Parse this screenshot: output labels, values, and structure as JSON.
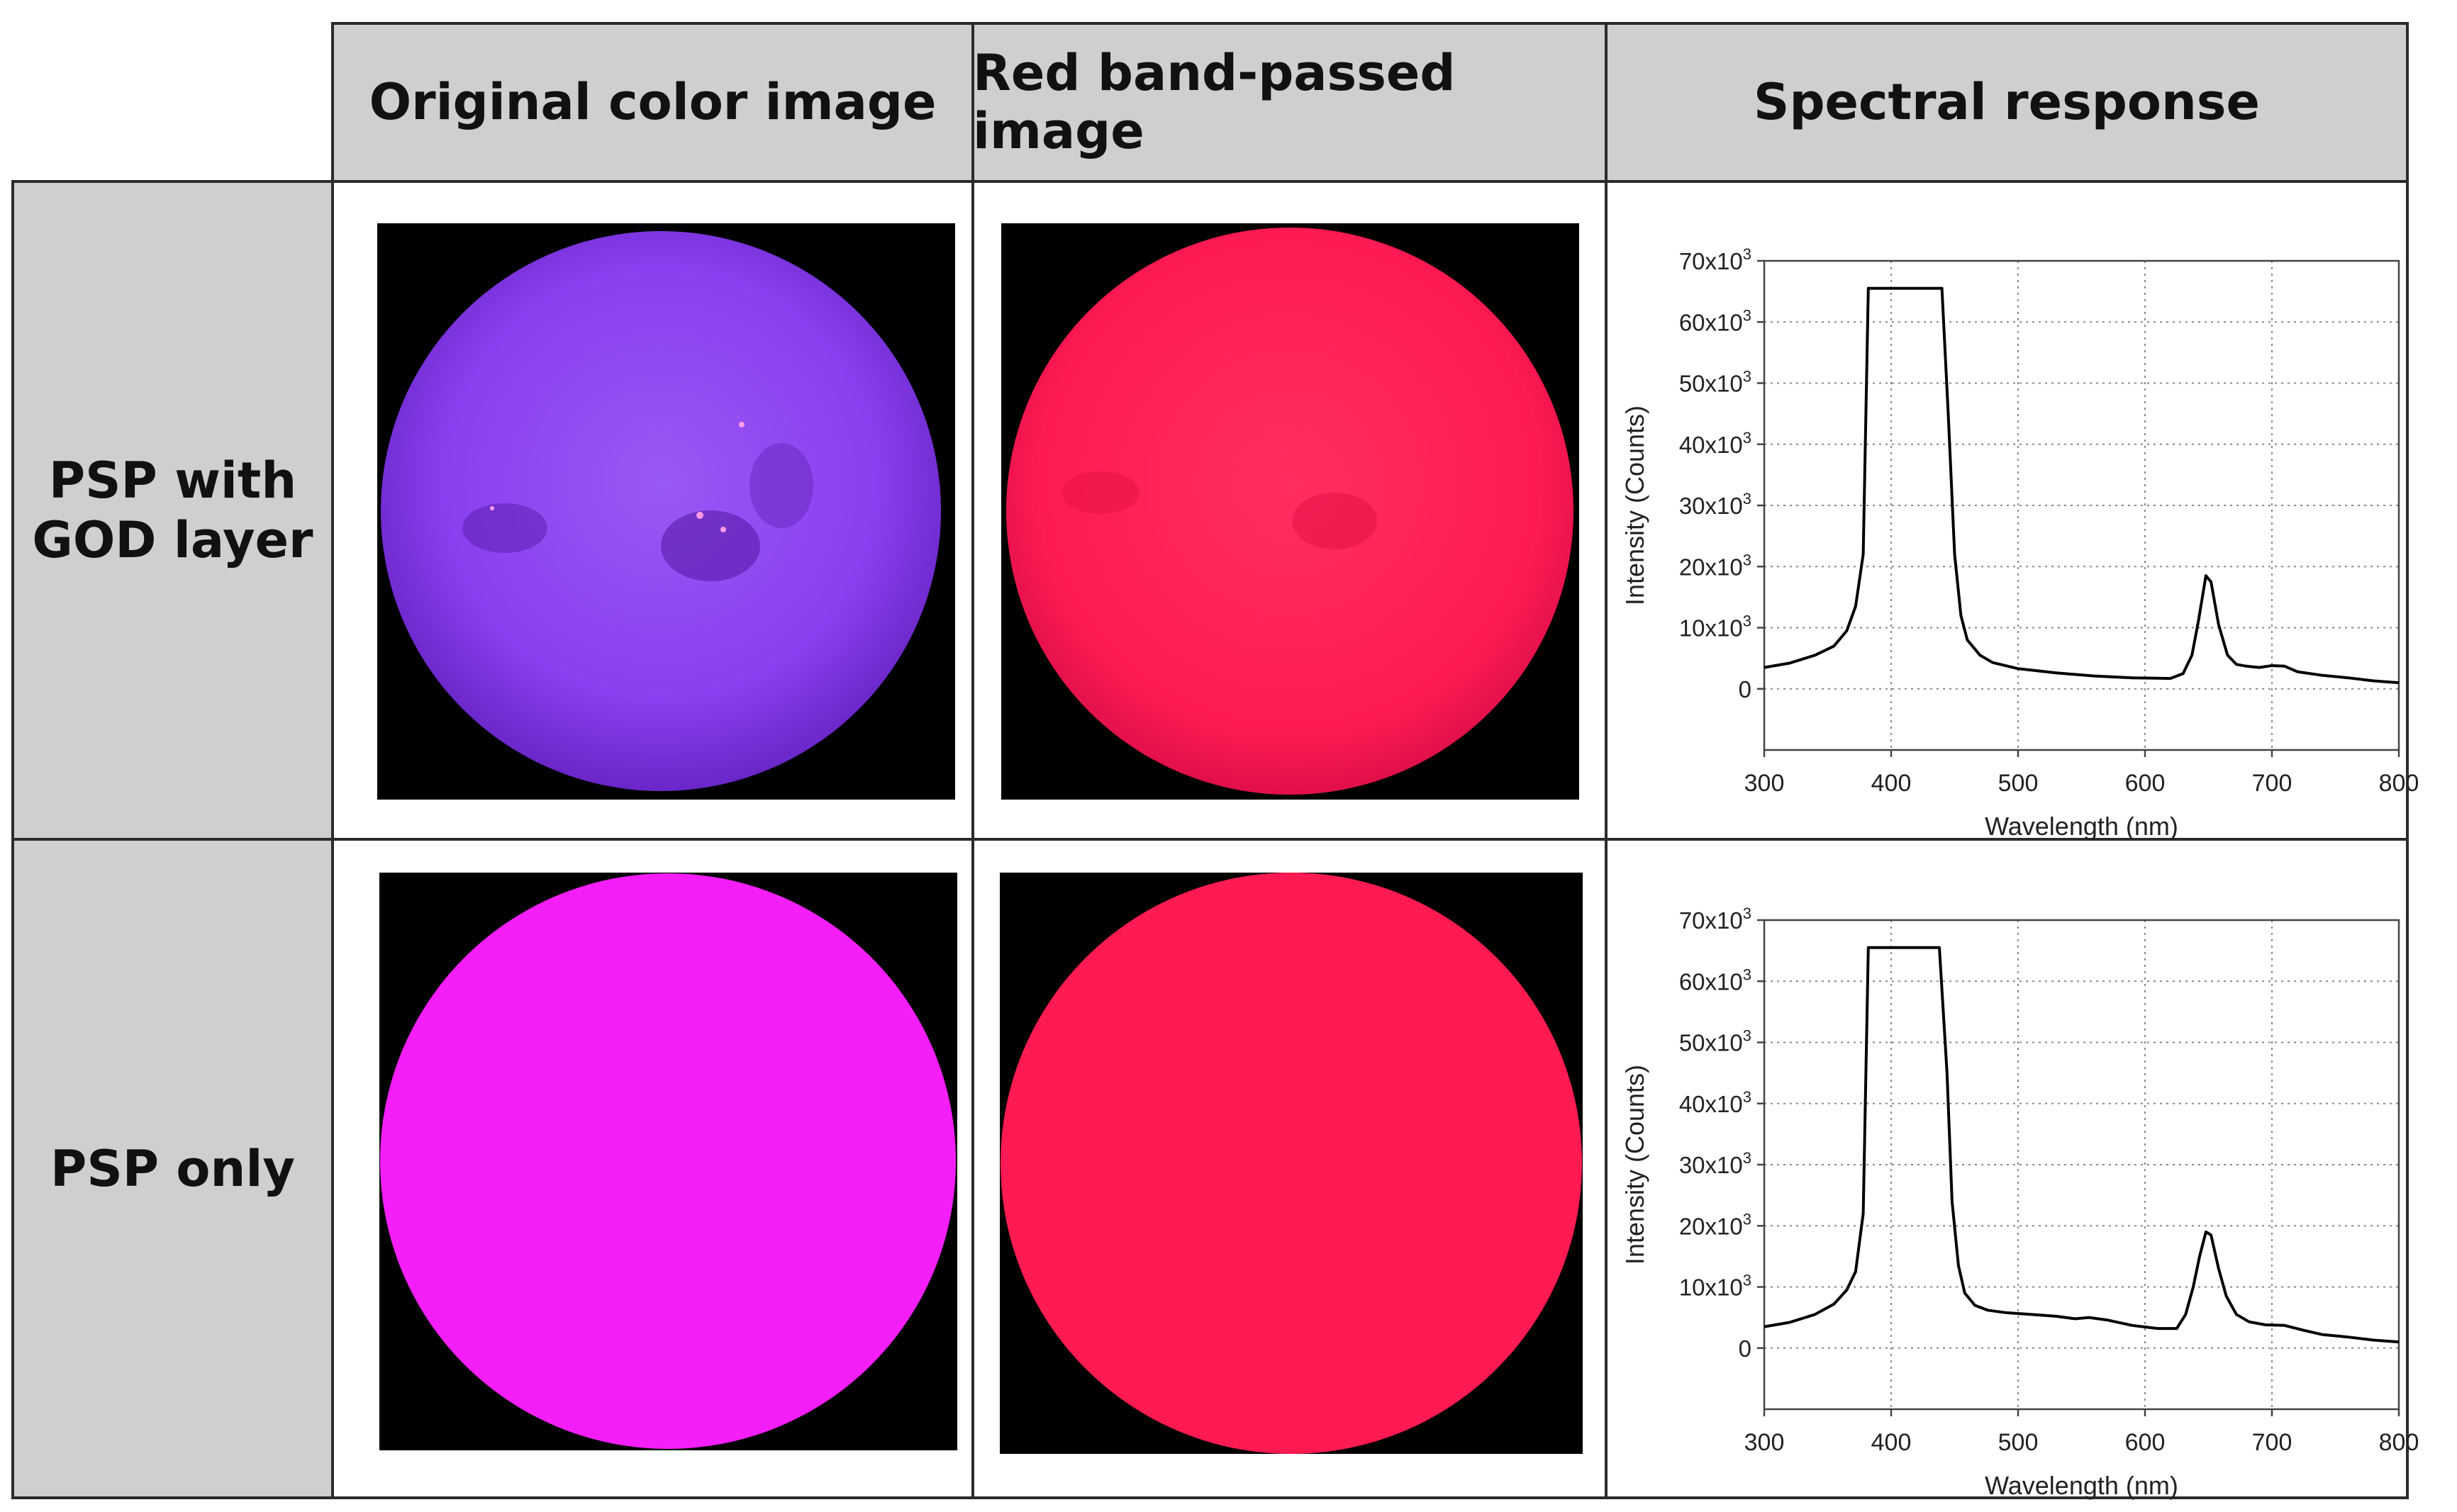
{
  "header": {
    "col1": "Original color image",
    "col2": "Red band-passed image",
    "col3": "Spectral response"
  },
  "rows": [
    {
      "label_line1": "PSP with",
      "label_line2": "GOD layer"
    },
    {
      "label_line1": "PSP only",
      "label_line2": ""
    }
  ],
  "colors": {
    "header_bg": "#d0cece",
    "psp_god_original": "#8b3ff0",
    "psp_only_original": "#f41ef9",
    "red_band": "#ff1a52",
    "photo_bg": "#000000",
    "line": "#000000"
  },
  "chart_data": [
    {
      "type": "line",
      "title": "",
      "xlabel": "Wavelength (nm)",
      "ylabel": "Intensity (Counts)",
      "xlim": [
        300,
        800
      ],
      "ylim": [
        -10000,
        70000
      ],
      "xticks": [
        "300",
        "400",
        "500",
        "600",
        "700",
        "800"
      ],
      "yticks": [
        {
          "base": "70x10",
          "exp": "3",
          "value": 70000
        },
        {
          "base": "60x10",
          "exp": "3",
          "value": 60000
        },
        {
          "base": "50x10",
          "exp": "3",
          "value": 50000
        },
        {
          "base": "40x10",
          "exp": "3",
          "value": 40000
        },
        {
          "base": "30x10",
          "exp": "3",
          "value": 30000
        },
        {
          "base": "20x10",
          "exp": "3",
          "value": 20000
        },
        {
          "base": "10x10",
          "exp": "3",
          "value": 10000
        },
        {
          "base": "0",
          "exp": "",
          "value": 0
        }
      ],
      "grid": true,
      "series": [
        {
          "x": [
            300,
            320,
            340,
            355,
            365,
            372,
            378,
            382,
            440,
            445,
            450,
            455,
            460,
            470,
            480,
            500,
            530,
            560,
            590,
            620,
            630,
            637,
            642,
            648,
            652,
            658,
            665,
            672,
            680,
            690,
            700,
            710,
            720,
            740,
            760,
            780,
            800
          ],
          "y": [
            3500,
            4200,
            5500,
            7000,
            9500,
            13500,
            22000,
            65500,
            65500,
            45000,
            22000,
            12000,
            8000,
            5500,
            4300,
            3300,
            2600,
            2100,
            1800,
            1700,
            2500,
            5500,
            11000,
            18500,
            17500,
            10500,
            5500,
            4000,
            3700,
            3500,
            3800,
            3700,
            2800,
            2200,
            1800,
            1300,
            1000
          ]
        }
      ]
    },
    {
      "type": "line",
      "title": "",
      "xlabel": "Wavelength (nm)",
      "ylabel": "Intensity (Counts)",
      "xlim": [
        300,
        800
      ],
      "ylim": [
        -10000,
        70000
      ],
      "xticks": [
        "300",
        "400",
        "500",
        "600",
        "700",
        "800"
      ],
      "yticks": [
        {
          "base": "70x10",
          "exp": "3",
          "value": 70000
        },
        {
          "base": "60x10",
          "exp": "3",
          "value": 60000
        },
        {
          "base": "50x10",
          "exp": "3",
          "value": 50000
        },
        {
          "base": "40x10",
          "exp": "3",
          "value": 40000
        },
        {
          "base": "30x10",
          "exp": "3",
          "value": 30000
        },
        {
          "base": "20x10",
          "exp": "3",
          "value": 20000
        },
        {
          "base": "10x10",
          "exp": "3",
          "value": 10000
        },
        {
          "base": "0",
          "exp": "",
          "value": 0
        }
      ],
      "grid": true,
      "series": [
        {
          "x": [
            300,
            320,
            340,
            355,
            365,
            372,
            378,
            382,
            438,
            444,
            448,
            453,
            458,
            466,
            476,
            490,
            510,
            530,
            545,
            556,
            570,
            590,
            610,
            625,
            632,
            638,
            643,
            648,
            652,
            658,
            664,
            672,
            682,
            695,
            710,
            725,
            740,
            760,
            780,
            800
          ],
          "y": [
            3500,
            4200,
            5500,
            7200,
            9500,
            12500,
            22000,
            65500,
            65500,
            45000,
            24000,
            13500,
            9000,
            7000,
            6200,
            5800,
            5500,
            5200,
            4800,
            5000,
            4600,
            3700,
            3200,
            3200,
            5500,
            10000,
            15000,
            19000,
            18500,
            13000,
            8500,
            5500,
            4300,
            3800,
            3700,
            2900,
            2200,
            1800,
            1300,
            1000
          ]
        }
      ]
    }
  ]
}
